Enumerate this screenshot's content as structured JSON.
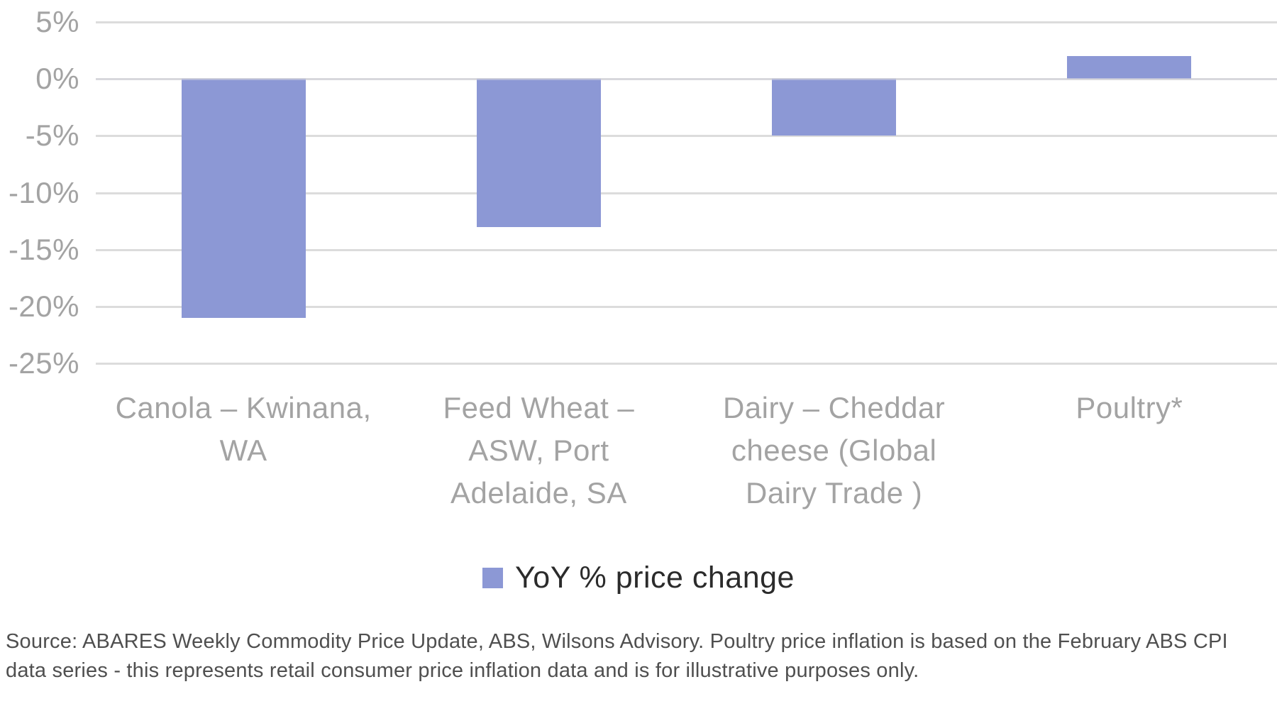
{
  "chart_data": {
    "type": "bar",
    "title": "",
    "xlabel": "",
    "ylabel": "",
    "categories": [
      "Canola – Kwinana, WA",
      "Feed Wheat – ASW, Port Adelaide, SA",
      "Dairy – Cheddar cheese (Global Dairy Trade )",
      "Poultry*"
    ],
    "category_lines": [
      [
        "Canola – Kwinana,",
        "WA"
      ],
      [
        "Feed Wheat –",
        "ASW, Port",
        "Adelaide, SA"
      ],
      [
        "Dairy – Cheddar",
        "cheese (Global",
        "Dairy Trade )"
      ],
      [
        "Poultry*"
      ]
    ],
    "series": [
      {
        "name": "YoY % price change",
        "values": [
          -21,
          -13,
          -5,
          2
        ]
      }
    ],
    "values": [
      -21,
      -13,
      -5,
      2
    ],
    "ylim": [
      -25,
      5
    ],
    "ytick_step": 5,
    "yticks": [
      {
        "value": 5,
        "label": "5%"
      },
      {
        "value": 0,
        "label": "0%"
      },
      {
        "value": -5,
        "label": "-5%"
      },
      {
        "value": -10,
        "label": "-10%"
      },
      {
        "value": -15,
        "label": "-15%"
      },
      {
        "value": -20,
        "label": "-20%"
      },
      {
        "value": -25,
        "label": "-25%"
      }
    ],
    "grid": true,
    "legend_position": "bottom",
    "bar_color": "#8C98D5"
  },
  "legend": {
    "label": "YoY % price change",
    "swatch_color": "#8C98D5"
  },
  "source_note": {
    "lines": [
      "Source: ABARES Weekly Commodity Price Update, ABS, Wilsons Advisory. Poultry price inflation is based on the February ABS CPI",
      "data series - this represents retail consumer price inflation data and is for illustrative purposes only."
    ]
  },
  "colors": {
    "bar": "#8C98D5",
    "gridline": "#dcdcdc",
    "axis_text": "#a3a3a3",
    "legend_text": "#2b2b2b",
    "source_text": "#4f4f4f"
  }
}
